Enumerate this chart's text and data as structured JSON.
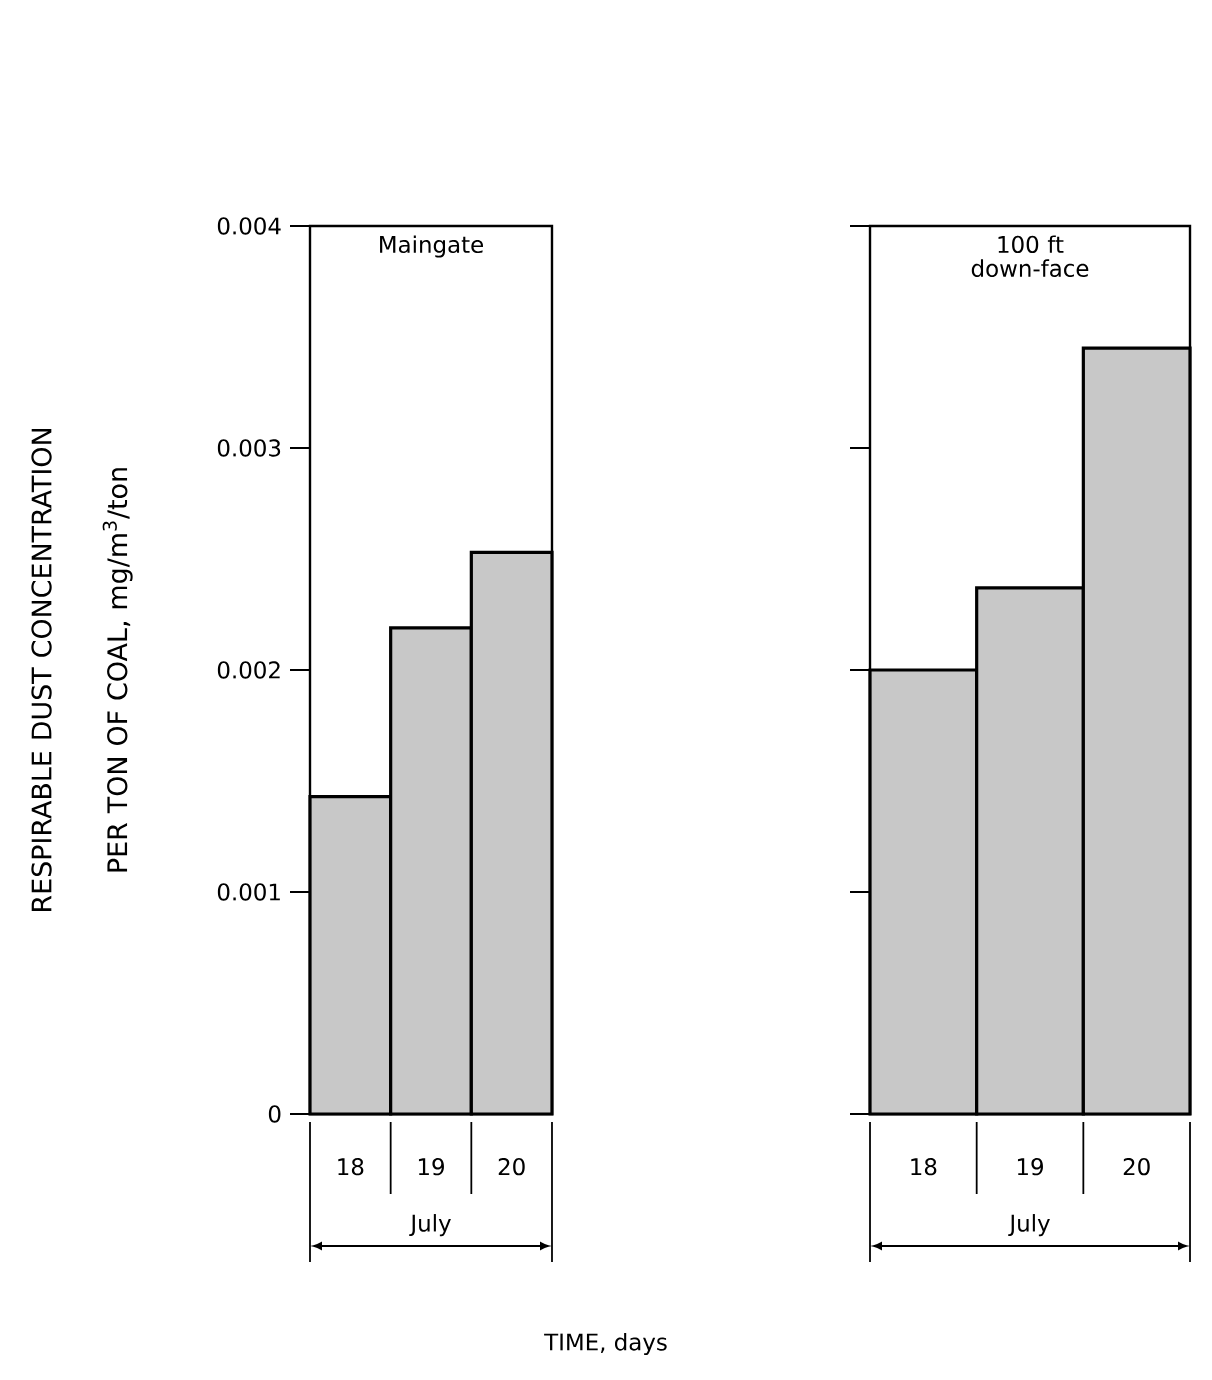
{
  "chart_data": [
    {
      "type": "bar",
      "title": "Maingate",
      "xlabel": "July",
      "ylabel": "RESPIRABLE DUST CONCENTRATION PER TON OF COAL, mg/m$^{3}$/ton",
      "categories": [
        "18",
        "19",
        "20"
      ],
      "values": [
        0.00143,
        0.00219,
        0.00253
      ],
      "color": "#c8c8c8",
      "ylim": [
        0,
        0.004
      ],
      "yticks": [
        0,
        0.001,
        0.002,
        0.003,
        0.004
      ],
      "annotations": [
        "TIME, days"
      ]
    },
    {
      "type": "bar",
      "title": "100 ft down-face",
      "xlabel": "July",
      "categories": [
        "18",
        "19",
        "20"
      ],
      "values": [
        0.002,
        0.00237,
        0.00345
      ],
      "color": "#c8c8c8",
      "ylim": [
        0,
        0.004
      ],
      "yticks": [
        0,
        0.001,
        0.002,
        0.003,
        0.004
      ],
      "tick_labels": "x"
    }
  ]
}
